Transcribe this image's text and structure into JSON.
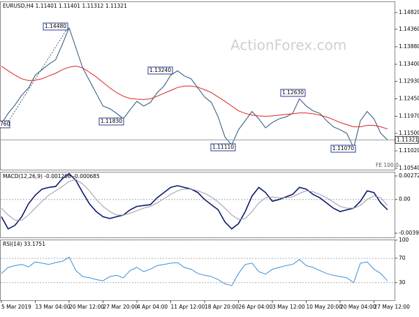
{
  "chart_data": [
    {
      "type": "line",
      "title": "EURUSD,H4  1.11401 1.11401 1.11312 1.11321",
      "watermark": "ActionForex.com",
      "annotations": [
        "760",
        "1.14480",
        "1.13240",
        "1.11830",
        "1.12630",
        "1.11110",
        "1.11070",
        "FE 100.0"
      ],
      "last_price": 1.11321,
      "ylim": [
        1.10502,
        1.15127
      ],
      "yticks": [
        {
          "value": 1.1482,
          "label": "1.14820"
        },
        {
          "value": 1.1436,
          "label": "1.14360"
        },
        {
          "value": 1.1388,
          "label": "1.13880"
        },
        {
          "value": 1.134,
          "label": "1.13400"
        },
        {
          "value": 1.1293,
          "label": "1.12930"
        },
        {
          "value": 1.1245,
          "label": "1.12450"
        },
        {
          "value": 1.1197,
          "label": "1.11970"
        },
        {
          "value": 1.115,
          "label": "1.11500"
        },
        {
          "value": 1.1102,
          "label": "1.11020"
        },
        {
          "value": 1.1054,
          "label": "1.10540"
        }
      ],
      "series": [
        {
          "name": "EURUSD",
          "color": "#24527a",
          "values": [
            1.1176,
            1.1205,
            1.1228,
            1.1255,
            1.1275,
            1.131,
            1.1325,
            1.134,
            1.1352,
            1.1395,
            1.144,
            1.1385,
            1.133,
            1.1295,
            1.126,
            1.1225,
            1.1218,
            1.1205,
            1.119,
            1.1215,
            1.1238,
            1.1225,
            1.1235,
            1.1262,
            1.128,
            1.131,
            1.1322,
            1.1308,
            1.13,
            1.1275,
            1.125,
            1.1235,
            1.1195,
            1.114,
            1.1118,
            1.116,
            1.1185,
            1.121,
            1.119,
            1.1165,
            1.118,
            1.119,
            1.1195,
            1.1205,
            1.1245,
            1.1225,
            1.1212,
            1.1205,
            1.1185,
            1.1168,
            1.116,
            1.115,
            1.111,
            1.1185,
            1.121,
            1.119,
            1.115,
            1.1132
          ]
        },
        {
          "name": "MA",
          "color": "#e02020",
          "values": [
            1.1335,
            1.1322,
            1.131,
            1.13,
            1.1295,
            1.1296,
            1.13,
            1.1308,
            1.1315,
            1.1325,
            1.1332,
            1.1335,
            1.133,
            1.1318,
            1.1305,
            1.129,
            1.1275,
            1.1262,
            1.1252,
            1.1246,
            1.1244,
            1.1243,
            1.1245,
            1.1252,
            1.126,
            1.1268,
            1.1276,
            1.128,
            1.128,
            1.1277,
            1.127,
            1.1262,
            1.125,
            1.1238,
            1.1225,
            1.1212,
            1.1205,
            1.12,
            1.1198,
            1.1197,
            1.1198,
            1.12,
            1.1202,
            1.1204,
            1.1206,
            1.1206,
            1.1204,
            1.12,
            1.1195,
            1.1188,
            1.118,
            1.1174,
            1.1168,
            1.1168,
            1.1172,
            1.1172,
            1.1168,
            1.1162
          ]
        }
      ]
    },
    {
      "type": "line",
      "title": "MACD(12,26,9) -0.001206 -0.000685",
      "ylim": [
        -0.00439,
        0.003208
      ],
      "yticks": [
        0.002723,
        {
          "value": 0,
          "label": "0.00"
        },
        -0.003905
      ],
      "series": [
        {
          "name": "MACD",
          "color": "#0a1a6e",
          "values": [
            -0.002,
            -0.0034,
            -0.003,
            -0.002,
            -0.0005,
            0.0005,
            0.0012,
            0.0014,
            0.0015,
            0.0024,
            0.003,
            0.0022,
            0.0008,
            -0.0005,
            -0.0014,
            -0.002,
            -0.0022,
            -0.002,
            -0.0018,
            -0.0012,
            -0.0008,
            -0.0007,
            -0.0006,
            0.0002,
            0.0008,
            0.0014,
            0.0016,
            0.0014,
            0.0012,
            0.0008,
            0,
            -0.0006,
            -0.0012,
            -0.0026,
            -0.0034,
            -0.0028,
            -0.0014,
            0.0004,
            0.0014,
            0.0008,
            -0.0002,
            0,
            0.0003,
            0.0006,
            0.0014,
            0.0012,
            0.0006,
            0.0002,
            -0.0004,
            -0.001,
            -0.0014,
            -0.0012,
            -0.001,
            -0.0002,
            0.001,
            0.0008,
            -0.0004,
            -0.0012
          ]
        },
        {
          "name": "Signal",
          "color": "#9a9aa8",
          "values": [
            -0.001,
            -0.0018,
            -0.0024,
            -0.0024,
            -0.0018,
            -0.001,
            -0.0002,
            0.0005,
            0.001,
            0.0015,
            0.0021,
            0.0023,
            0.0018,
            0.001,
            0,
            -0.0008,
            -0.0014,
            -0.0018,
            -0.0018,
            -0.0016,
            -0.0013,
            -0.001,
            -0.0008,
            -0.0004,
            0.0001,
            0.0006,
            0.001,
            0.0012,
            0.0012,
            0.001,
            0.0007,
            0.0003,
            -0.0003,
            -0.001,
            -0.0018,
            -0.0023,
            -0.0022,
            -0.0014,
            -0.0004,
            0.0002,
            0.0003,
            0.0002,
            0.0002,
            0.0003,
            0.0007,
            0.001,
            0.0009,
            0.0006,
            0.0002,
            -0.0003,
            -0.0008,
            -0.001,
            -0.001,
            -0.0007,
            0,
            0.0004,
            0.0002,
            -0.0007
          ]
        }
      ]
    },
    {
      "type": "line",
      "title": "RSI(14) 33.1751",
      "ylim": [
        1,
        101
      ],
      "yticks": [
        100,
        70,
        30
      ],
      "categories": [
        "5 Mar 2019",
        null,
        null,
        null,
        null,
        "13 Mar 04:00",
        null,
        null,
        null,
        null,
        "20 Mar 12:00",
        null,
        null,
        null,
        null,
        "27 Mar 20:00",
        null,
        null,
        null,
        null,
        "4 Apr 04:00",
        null,
        null,
        null,
        null,
        "11 Apr 12:00",
        null,
        null,
        null,
        null,
        "18 Apr 20:00",
        null,
        null,
        null,
        null,
        "26 Apr 04:00",
        null,
        null,
        null,
        null,
        "3 May 12:00",
        null,
        null,
        null,
        null,
        "10 May 20:00",
        null,
        null,
        null,
        null,
        "20 May 04:00",
        null,
        null,
        null,
        null,
        "27 May 12:00",
        null,
        null
      ],
      "series": [
        {
          "name": "RSI",
          "color": "#3a8fd8",
          "values": [
            45,
            55,
            58,
            60,
            56,
            64,
            62,
            60,
            63,
            65,
            72,
            50,
            40,
            38,
            35,
            33,
            40,
            42,
            38,
            50,
            55,
            48,
            52,
            58,
            60,
            62,
            63,
            55,
            52,
            45,
            42,
            40,
            35,
            28,
            25,
            45,
            60,
            62,
            48,
            44,
            52,
            55,
            58,
            60,
            68,
            58,
            55,
            50,
            45,
            42,
            40,
            38,
            30,
            62,
            64,
            52,
            45,
            33
          ]
        }
      ]
    }
  ]
}
